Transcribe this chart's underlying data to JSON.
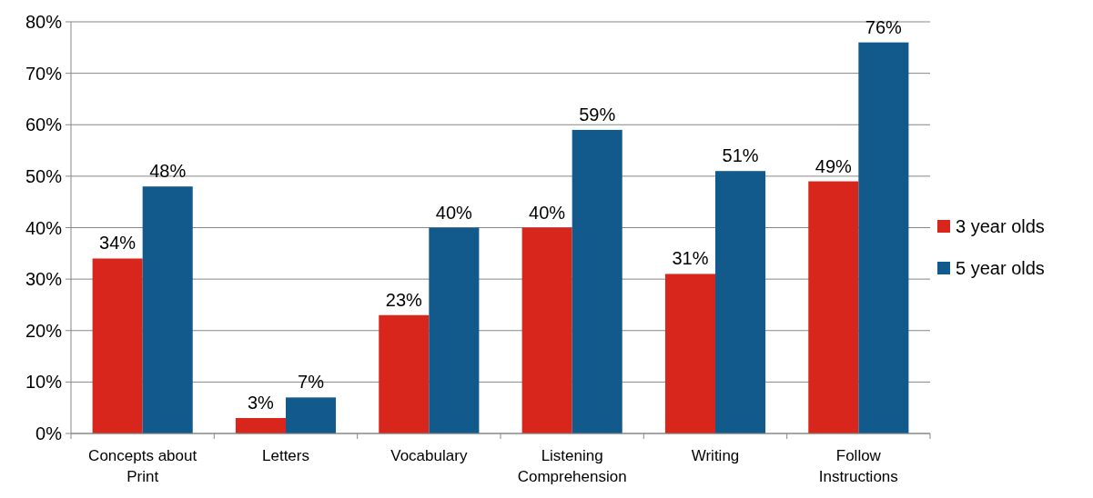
{
  "chart_data": {
    "type": "bar",
    "categories": [
      "Concepts about Print",
      "Letters",
      "Vocabulary",
      "Listening Comprehension",
      "Writing",
      "Follow Instructions"
    ],
    "series": [
      {
        "name": "3 year olds",
        "color": "#d9261c",
        "values": [
          34,
          3,
          23,
          40,
          31,
          49
        ],
        "value_labels": [
          "34%",
          "3%",
          "23%",
          "40%",
          "31%",
          "49%"
        ]
      },
      {
        "name": "5 year olds",
        "color": "#135a8c",
        "values": [
          48,
          7,
          40,
          59,
          51,
          76
        ],
        "value_labels": [
          "48%",
          "7%",
          "40%",
          "59%",
          "51%",
          "76%"
        ]
      }
    ],
    "ylim": [
      0,
      80
    ],
    "yticks": [
      {
        "value": 0,
        "label": "0%"
      },
      {
        "value": 10,
        "label": "10%"
      },
      {
        "value": 20,
        "label": "20%"
      },
      {
        "value": 30,
        "label": "30%"
      },
      {
        "value": 40,
        "label": "40%"
      },
      {
        "value": 50,
        "label": "50%"
      },
      {
        "value": 60,
        "label": "60%"
      },
      {
        "value": 70,
        "label": "70%"
      },
      {
        "value": 80,
        "label": "80%"
      }
    ],
    "grid": "y",
    "legend": "right"
  }
}
